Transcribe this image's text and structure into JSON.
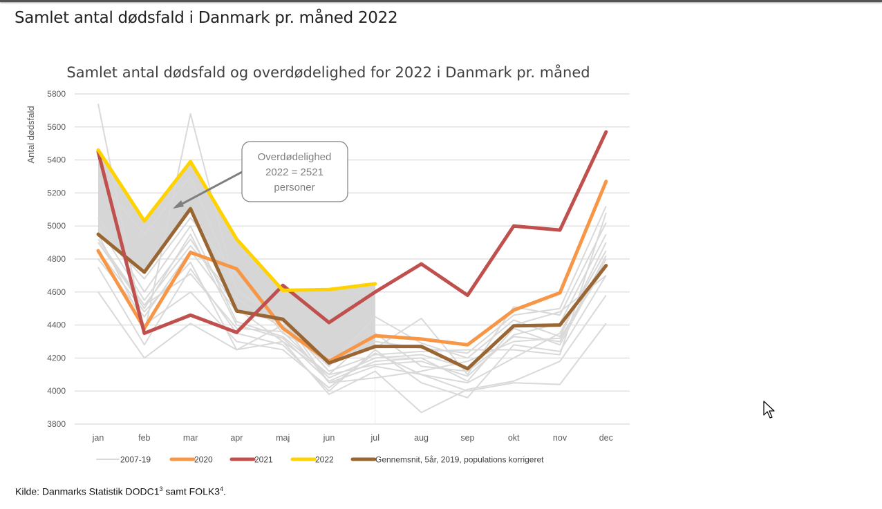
{
  "page": {
    "title": "Samlet antal dødsfald i Danmark pr. måned 2022",
    "source_prefix": "Kilde: Danmarks Statistik DODC1",
    "source_sup1": "3",
    "source_mid": " samt FOLK3",
    "source_sup2": "4",
    "source_suffix": "."
  },
  "chart_data": {
    "type": "line",
    "title": "Samlet antal dødsfald og overdødelighed for 2022 i Danmark pr. måned",
    "xlabel": "",
    "ylabel": "Antal dødsfald",
    "ylim": [
      3800,
      5800
    ],
    "yticks": [
      3800,
      4000,
      4200,
      4400,
      4600,
      4800,
      5000,
      5200,
      5400,
      5600,
      5800
    ],
    "grid": true,
    "legend_position": "bottom",
    "categories": [
      "jan",
      "feb",
      "mar",
      "apr",
      "maj",
      "jun",
      "jul",
      "aug",
      "sep",
      "okt",
      "nov",
      "dec"
    ],
    "background_series": {
      "name": "2007-19",
      "color": "#d9d9d9",
      "lines": [
        [
          5740,
          4350,
          5680,
          4600,
          4450,
          4050,
          4150,
          4100,
          4000,
          4050,
          4040,
          4410
        ],
        [
          4600,
          4200,
          4410,
          4250,
          4300,
          3980,
          4120,
          3870,
          4010,
          4060,
          4180,
          4580
        ],
        [
          4750,
          4280,
          4740,
          4350,
          4280,
          4000,
          4250,
          4050,
          3960,
          4280,
          4240,
          4700
        ],
        [
          4900,
          4500,
          4950,
          4400,
          4320,
          4060,
          4180,
          4200,
          4060,
          4380,
          4280,
          4800
        ],
        [
          5000,
          4550,
          4920,
          4500,
          4300,
          4100,
          4350,
          4150,
          4120,
          4330,
          4300,
          4820
        ],
        [
          5280,
          4950,
          5300,
          4620,
          4400,
          4150,
          4450,
          4290,
          4200,
          4430,
          4330,
          4900
        ],
        [
          4980,
          4680,
          5050,
          4700,
          4350,
          4200,
          4260,
          4440,
          4100,
          4510,
          4460,
          5020
        ],
        [
          4800,
          4450,
          4850,
          4480,
          4420,
          4120,
          4220,
          4240,
          4250,
          4250,
          4220,
          5080
        ],
        [
          4920,
          4520,
          4880,
          4560,
          4380,
          4200,
          4300,
          4260,
          4230,
          4460,
          4500,
          5120
        ],
        [
          4850,
          4480,
          4780,
          4250,
          4400,
          4050,
          4080,
          4120,
          4180,
          4300,
          4320,
          4760
        ],
        [
          5050,
          4600,
          5000,
          4420,
          4330,
          4100,
          4160,
          4180,
          4090,
          4340,
          4410,
          4950
        ],
        [
          4950,
          4400,
          4600,
          4300,
          4250,
          4020,
          4230,
          4100,
          4050,
          4200,
          4350,
          4850
        ],
        [
          4900,
          4520,
          4710,
          4380,
          4360,
          4080,
          4200,
          4220,
          4140,
          4400,
          4480,
          4700
        ]
      ]
    },
    "series": [
      {
        "name": "2020",
        "color": "#f79646",
        "values": [
          4850,
          4380,
          4840,
          4740,
          4380,
          4180,
          4335,
          4315,
          4280,
          4490,
          4595,
          5270
        ]
      },
      {
        "name": "2021",
        "color": "#c0504d",
        "values": [
          5450,
          4350,
          4460,
          4355,
          4640,
          4415,
          4600,
          4770,
          4580,
          5000,
          4975,
          5570
        ]
      },
      {
        "name": "2022",
        "color": "#ffd200",
        "values": [
          5460,
          5030,
          5390,
          4920,
          4610,
          4615,
          4650,
          null,
          null,
          null,
          null,
          null
        ]
      },
      {
        "name": "Gennemsnit, 5år, 2019, populations korrigeret",
        "color": "#996633",
        "values": [
          4950,
          4720,
          5105,
          4485,
          4435,
          4170,
          4270,
          4270,
          4135,
          4395,
          4400,
          4760
        ]
      }
    ],
    "shaded_area": {
      "description": "Excess mortality between 2022 and average",
      "color": "#d6d6d6",
      "upper": "2022",
      "lower": "Gennemsnit, 5år, 2019, populations korrigeret"
    },
    "annotation": {
      "lines": [
        "Overdødelighed",
        "2022 = 2521",
        "personer"
      ],
      "points_to": {
        "category": "feb-mar",
        "value": 5100
      }
    },
    "legend": [
      "2007-19",
      "2020",
      "2021",
      "2022",
      "Gennemsnit, 5år, 2019, populations korrigeret"
    ]
  }
}
